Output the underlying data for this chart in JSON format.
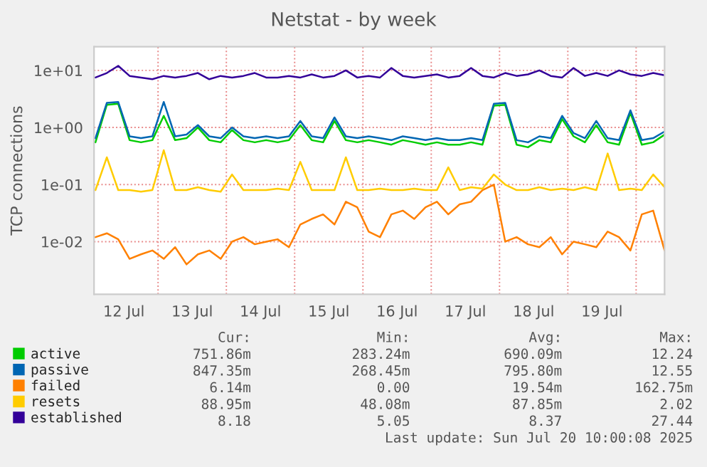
{
  "chart_data": {
    "type": "line",
    "title": "Netstat - by week",
    "ylabel": "TCP connections",
    "x": [
      "2025-07-12T02:00",
      "2025-07-12T06:00",
      "2025-07-12T10:00",
      "2025-07-12T14:00",
      "2025-07-12T18:00",
      "2025-07-12T22:00",
      "2025-07-13T02:00",
      "2025-07-13T06:00",
      "2025-07-13T10:00",
      "2025-07-13T14:00",
      "2025-07-13T18:00",
      "2025-07-13T22:00",
      "2025-07-14T02:00",
      "2025-07-14T06:00",
      "2025-07-14T10:00",
      "2025-07-14T14:00",
      "2025-07-14T18:00",
      "2025-07-14T22:00",
      "2025-07-15T02:00",
      "2025-07-15T06:00",
      "2025-07-15T10:00",
      "2025-07-15T14:00",
      "2025-07-15T18:00",
      "2025-07-15T22:00",
      "2025-07-16T02:00",
      "2025-07-16T06:00",
      "2025-07-16T10:00",
      "2025-07-16T14:00",
      "2025-07-16T18:00",
      "2025-07-16T22:00",
      "2025-07-17T02:00",
      "2025-07-17T06:00",
      "2025-07-17T10:00",
      "2025-07-17T14:00",
      "2025-07-17T18:00",
      "2025-07-17T22:00",
      "2025-07-18T02:00",
      "2025-07-18T06:00",
      "2025-07-18T10:00",
      "2025-07-18T14:00",
      "2025-07-18T18:00",
      "2025-07-18T22:00",
      "2025-07-19T02:00",
      "2025-07-19T06:00",
      "2025-07-19T10:00",
      "2025-07-19T14:00",
      "2025-07-19T18:00",
      "2025-07-19T22:00",
      "2025-07-20T02:00",
      "2025-07-20T06:00",
      "2025-07-20T10:00"
    ],
    "series": [
      {
        "name": "active",
        "color": "#00cc00",
        "values": [
          0.55,
          2.5,
          2.6,
          0.6,
          0.55,
          0.6,
          1.6,
          0.6,
          0.65,
          1.0,
          0.6,
          0.55,
          0.9,
          0.6,
          0.55,
          0.6,
          0.55,
          0.6,
          1.1,
          0.6,
          0.55,
          1.3,
          0.6,
          0.55,
          0.6,
          0.55,
          0.5,
          0.6,
          0.55,
          0.5,
          0.55,
          0.5,
          0.5,
          0.55,
          0.5,
          2.4,
          2.5,
          0.5,
          0.45,
          0.6,
          0.55,
          1.4,
          0.7,
          0.55,
          1.1,
          0.55,
          0.5,
          1.8,
          0.5,
          0.55,
          0.75
        ]
      },
      {
        "name": "passive",
        "color": "#0066b3",
        "values": [
          0.65,
          2.7,
          2.8,
          0.7,
          0.65,
          0.7,
          2.8,
          0.7,
          0.75,
          1.1,
          0.7,
          0.65,
          1.0,
          0.7,
          0.65,
          0.7,
          0.65,
          0.7,
          1.3,
          0.7,
          0.65,
          1.5,
          0.7,
          0.65,
          0.7,
          0.65,
          0.6,
          0.7,
          0.65,
          0.6,
          0.65,
          0.6,
          0.6,
          0.65,
          0.6,
          2.6,
          2.7,
          0.6,
          0.55,
          0.7,
          0.65,
          1.6,
          0.8,
          0.65,
          1.3,
          0.65,
          0.6,
          2.0,
          0.6,
          0.65,
          0.85
        ]
      },
      {
        "name": "failed",
        "color": "#ff8000",
        "values": [
          0.012,
          0.014,
          0.011,
          0.005,
          0.006,
          0.007,
          0.005,
          0.008,
          0.004,
          0.006,
          0.007,
          0.005,
          0.01,
          0.012,
          0.009,
          0.01,
          0.011,
          0.008,
          0.02,
          0.025,
          0.03,
          0.02,
          0.05,
          0.04,
          0.015,
          0.012,
          0.03,
          0.035,
          0.025,
          0.04,
          0.05,
          0.03,
          0.045,
          0.05,
          0.08,
          0.1,
          0.01,
          0.012,
          0.009,
          0.008,
          0.012,
          0.006,
          0.01,
          0.009,
          0.008,
          0.015,
          0.012,
          0.007,
          0.03,
          0.035,
          0.007
        ]
      },
      {
        "name": "resets",
        "color": "#ffcc00",
        "values": [
          0.08,
          0.3,
          0.08,
          0.08,
          0.075,
          0.08,
          0.4,
          0.08,
          0.08,
          0.09,
          0.08,
          0.075,
          0.15,
          0.08,
          0.08,
          0.08,
          0.085,
          0.08,
          0.25,
          0.08,
          0.08,
          0.08,
          0.3,
          0.08,
          0.08,
          0.085,
          0.08,
          0.08,
          0.085,
          0.08,
          0.08,
          0.2,
          0.08,
          0.09,
          0.085,
          0.15,
          0.1,
          0.08,
          0.08,
          0.09,
          0.08,
          0.085,
          0.08,
          0.09,
          0.08,
          0.35,
          0.08,
          0.085,
          0.08,
          0.15,
          0.09
        ]
      },
      {
        "name": "established",
        "color": "#330099",
        "values": [
          7.5,
          9,
          12,
          8,
          7.5,
          7,
          8,
          7.5,
          8,
          9,
          7,
          8,
          7.5,
          8,
          9,
          7.5,
          7.5,
          8,
          7.5,
          8.5,
          7.5,
          8,
          10,
          7.5,
          8,
          7.5,
          11,
          8,
          7.5,
          8,
          8.5,
          7.5,
          8,
          11,
          8,
          7.5,
          9,
          8,
          8.5,
          10,
          8,
          7.5,
          11,
          8,
          9,
          8,
          10,
          8.5,
          8,
          9,
          8.2
        ]
      }
    ],
    "log": true,
    "ylim": [
      0.0012,
      26
    ],
    "yticks": [
      {
        "value": 0.01,
        "label": "1e-02"
      },
      {
        "value": 0.1,
        "label": "1e-01"
      },
      {
        "value": 1,
        "label": "1e+00"
      },
      {
        "value": 10,
        "label": "1e+01"
      }
    ],
    "xlim": [
      "2025-07-12T01:30",
      "2025-07-20T10:00"
    ],
    "xticks": [
      {
        "value": "2025-07-12T12:00",
        "label": "12 Jul"
      },
      {
        "value": "2025-07-13T12:00",
        "label": "13 Jul"
      },
      {
        "value": "2025-07-14T12:00",
        "label": "14 Jul"
      },
      {
        "value": "2025-07-15T12:00",
        "label": "15 Jul"
      },
      {
        "value": "2025-07-16T12:00",
        "label": "16 Jul"
      },
      {
        "value": "2025-07-17T12:00",
        "label": "17 Jul"
      },
      {
        "value": "2025-07-18T12:00",
        "label": "18 Jul"
      },
      {
        "value": "2025-07-19T12:00",
        "label": "19 Jul"
      }
    ],
    "ref_lines": [
      {
        "axis": "x",
        "value": "2025-07-13T00:00",
        "color": "#e88888",
        "line_style": "dotted"
      },
      {
        "axis": "x",
        "value": "2025-07-14T00:00",
        "color": "#e88888",
        "line_style": "dotted"
      },
      {
        "axis": "x",
        "value": "2025-07-15T00:00",
        "color": "#e88888",
        "line_style": "dotted"
      },
      {
        "axis": "x",
        "value": "2025-07-16T00:00",
        "color": "#e88888",
        "line_style": "dotted"
      },
      {
        "axis": "x",
        "value": "2025-07-17T00:00",
        "color": "#e88888",
        "line_style": "dotted"
      },
      {
        "axis": "x",
        "value": "2025-07-18T00:00",
        "color": "#e88888",
        "line_style": "dotted"
      },
      {
        "axis": "x",
        "value": "2025-07-19T00:00",
        "color": "#e88888",
        "line_style": "dotted"
      },
      {
        "axis": "x",
        "value": "2025-07-20T00:00",
        "color": "#e88888",
        "line_style": "dotted"
      }
    ],
    "grid": "y",
    "legend": "bottom",
    "annotations": [
      "Cur:",
      "Min:",
      "Avg:",
      "Max:",
      "751.86m",
      "283.24m",
      "690.09m",
      "12.24",
      "847.35m",
      "268.45m",
      "795.80m",
      "12.55",
      "6.14m",
      "0.00",
      "19.54m",
      "162.75m",
      "88.95m",
      "48.08m",
      "87.85m",
      "2.02",
      "8.18",
      "5.05",
      "8.37",
      "27.44",
      "Last update: Sun Jul 20 10:00:08 2025"
    ]
  }
}
